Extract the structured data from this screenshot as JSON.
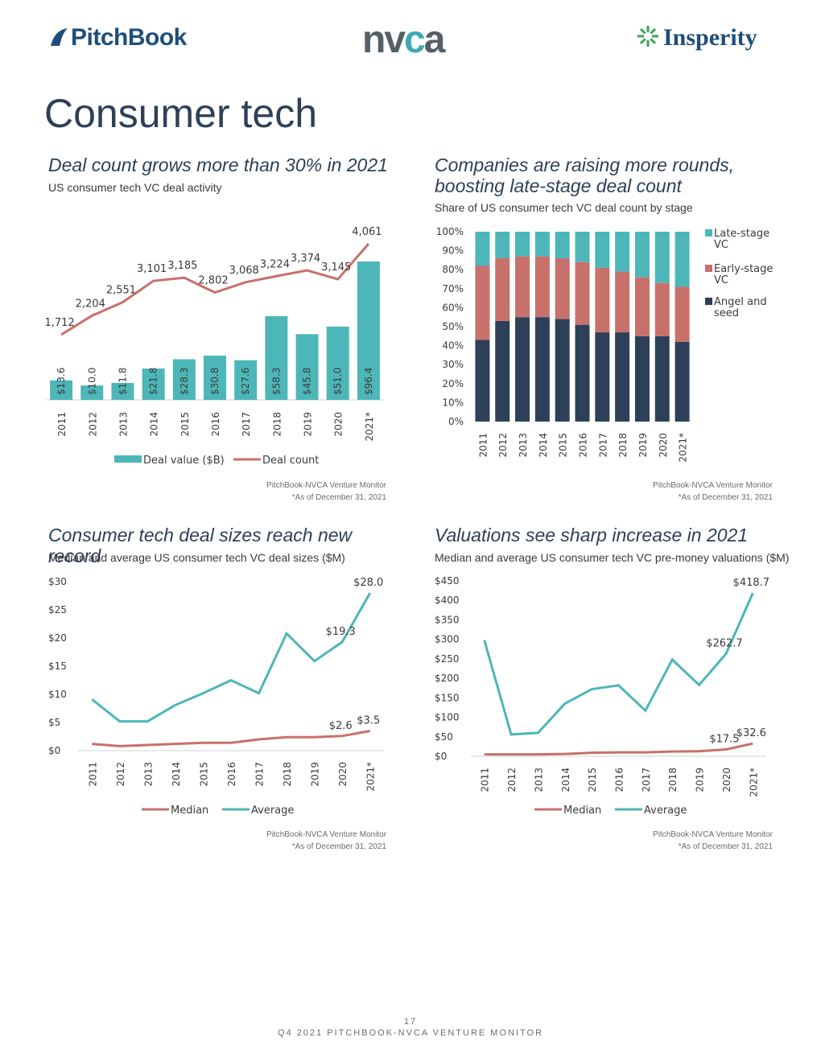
{
  "header": {
    "logo_pitchbook": "PitchBook",
    "logo_nvca_prefix": "nv",
    "logo_nvca_accent": "c",
    "logo_nvca_suffix": "a",
    "logo_insperity": "Insperity"
  },
  "page_title": "Consumer tech",
  "charts": [
    {
      "title": "Deal count grows more than 30% in 2021",
      "subtitle": "US consumer tech VC deal activity",
      "source": "PitchBook-NVCA Venture Monitor",
      "note": "*As of December 31, 2021"
    },
    {
      "title": "Companies are raising more rounds, boosting late-stage deal count",
      "subtitle": "Share of US consumer tech VC deal count by stage",
      "source": "PitchBook-NVCA Venture Monitor",
      "note": "*As of December 31, 2021"
    },
    {
      "title": "Consumer tech deal sizes reach new record",
      "subtitle": "Median and average US consumer tech VC deal sizes ($M)",
      "source": "PitchBook-NVCA Venture Monitor",
      "note": "*As of December 31, 2021"
    },
    {
      "title": "Valuations see sharp increase in 2021",
      "subtitle": "Median and average US consumer tech VC pre-money valuations ($M)",
      "source": "PitchBook-NVCA Venture Monitor",
      "note": "*As of December 31, 2021"
    }
  ],
  "colors": {
    "teal": "#4db6b8",
    "salmon": "#c8706a",
    "navy": "#2d4058",
    "axis": "#d0d0d0",
    "text": "#3a3a3a"
  },
  "chart_data": [
    {
      "type": "bar",
      "categories": [
        "2011",
        "2012",
        "2013",
        "2014",
        "2015",
        "2016",
        "2017",
        "2018",
        "2019",
        "2020",
        "2021*"
      ],
      "series": [
        {
          "name": "Deal value ($B)",
          "type": "bar",
          "values": [
            13.6,
            10.0,
            11.8,
            21.8,
            28.3,
            30.8,
            27.6,
            58.3,
            45.8,
            51.0,
            96.4
          ],
          "labels": [
            "$13.6",
            "$10.0",
            "$11.8",
            "$21.8",
            "$28.3",
            "$30.8",
            "$27.6",
            "$58.3",
            "$45.8",
            "$51.0",
            "$96.4"
          ]
        },
        {
          "name": "Deal count",
          "type": "line",
          "values": [
            1712,
            2204,
            2551,
            3101,
            3185,
            2802,
            3068,
            3224,
            3374,
            3145,
            4061
          ],
          "labels": [
            "1,712",
            "2,204",
            "2,551",
            "3,101",
            "3,185",
            "2,802",
            "3,068",
            "3,224",
            "3,374",
            "3,145",
            "4,061"
          ]
        }
      ],
      "legend": "bottom"
    },
    {
      "type": "bar",
      "stacked": true,
      "categories": [
        "2011",
        "2012",
        "2013",
        "2014",
        "2015",
        "2016",
        "2017",
        "2018",
        "2019",
        "2020",
        "2021*"
      ],
      "series": [
        {
          "name": "Angel and seed",
          "values": [
            43,
            53,
            55,
            55,
            54,
            51,
            47,
            47,
            45,
            45,
            42
          ]
        },
        {
          "name": "Early-stage VC",
          "values": [
            39,
            33,
            32,
            32,
            32,
            33,
            34,
            32,
            31,
            28,
            29
          ]
        },
        {
          "name": "Late-stage VC",
          "values": [
            18,
            14,
            13,
            13,
            14,
            16,
            19,
            21,
            24,
            27,
            29
          ]
        }
      ],
      "yticks": [
        "0%",
        "10%",
        "20%",
        "30%",
        "40%",
        "50%",
        "60%",
        "70%",
        "80%",
        "90%",
        "100%"
      ],
      "ylim": [
        0,
        100
      ],
      "legend": "right"
    },
    {
      "type": "line",
      "categories": [
        "2011",
        "2012",
        "2013",
        "2014",
        "2015",
        "2016",
        "2017",
        "2018",
        "2019",
        "2020",
        "2021*"
      ],
      "series": [
        {
          "name": "Median",
          "values": [
            1.2,
            0.8,
            1.0,
            1.2,
            1.4,
            1.4,
            2.0,
            2.4,
            2.4,
            2.6,
            3.5
          ]
        },
        {
          "name": "Average",
          "values": [
            9.1,
            5.2,
            5.2,
            8.1,
            10.2,
            12.5,
            10.2,
            20.8,
            15.9,
            19.3,
            28.0
          ]
        }
      ],
      "point_labels": [
        {
          "series": 0,
          "index": 9,
          "text": "$2.6"
        },
        {
          "series": 0,
          "index": 10,
          "text": "$3.5"
        },
        {
          "series": 1,
          "index": 9,
          "text": "$19.3"
        },
        {
          "series": 1,
          "index": 10,
          "text": "$28.0"
        }
      ],
      "yticks": [
        "$0",
        "$5",
        "$10",
        "$15",
        "$20",
        "$25",
        "$30"
      ],
      "ylim": [
        0,
        30
      ],
      "legend": "bottom"
    },
    {
      "type": "line",
      "categories": [
        "2011",
        "2012",
        "2013",
        "2014",
        "2015",
        "2016",
        "2017",
        "2018",
        "2019",
        "2020",
        "2021*"
      ],
      "series": [
        {
          "name": "Median",
          "values": [
            5,
            5,
            5,
            6,
            9,
            10,
            10,
            12,
            13,
            17.5,
            32.6
          ]
        },
        {
          "name": "Average",
          "values": [
            298,
            56,
            60,
            135,
            172,
            182,
            117,
            248,
            183,
            262.7,
            418.7
          ]
        }
      ],
      "point_labels": [
        {
          "series": 0,
          "index": 9,
          "text": "$17.5"
        },
        {
          "series": 0,
          "index": 10,
          "text": "$32.6"
        },
        {
          "series": 1,
          "index": 9,
          "text": "$262.7"
        },
        {
          "series": 1,
          "index": 10,
          "text": "$418.7"
        }
      ],
      "yticks": [
        "$0",
        "$50",
        "$100",
        "$150",
        "$200",
        "$250",
        "$300",
        "$350",
        "$400",
        "$450"
      ],
      "ylim": [
        0,
        450
      ],
      "legend": "bottom"
    }
  ],
  "footer": {
    "page_number": "17",
    "text": "Q4 2021 PITCHBOOK-NVCA VENTURE MONITOR"
  }
}
